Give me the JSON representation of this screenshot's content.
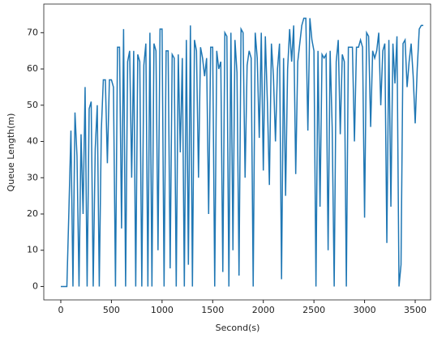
{
  "chart_data": {
    "type": "line",
    "xlabel": "Second(s)",
    "ylabel": "Queue Length(m)",
    "x": [
      0,
      20,
      40,
      60,
      80,
      100,
      120,
      140,
      160,
      180,
      200,
      220,
      240,
      260,
      280,
      300,
      320,
      340,
      360,
      380,
      400,
      420,
      440,
      460,
      480,
      500,
      520,
      540,
      560,
      580,
      600,
      620,
      640,
      660,
      680,
      700,
      720,
      740,
      760,
      780,
      800,
      820,
      840,
      860,
      880,
      900,
      920,
      940,
      960,
      980,
      1000,
      1020,
      1040,
      1060,
      1080,
      1100,
      1120,
      1140,
      1160,
      1180,
      1200,
      1220,
      1240,
      1260,
      1280,
      1300,
      1320,
      1340,
      1360,
      1380,
      1400,
      1420,
      1440,
      1460,
      1480,
      1500,
      1520,
      1540,
      1560,
      1580,
      1600,
      1620,
      1640,
      1660,
      1680,
      1700,
      1720,
      1740,
      1760,
      1780,
      1800,
      1820,
      1840,
      1860,
      1880,
      1900,
      1920,
      1940,
      1960,
      1980,
      2000,
      2020,
      2040,
      2060,
      2080,
      2100,
      2120,
      2140,
      2160,
      2180,
      2200,
      2220,
      2240,
      2260,
      2280,
      2300,
      2320,
      2340,
      2360,
      2380,
      2400,
      2420,
      2440,
      2460,
      2480,
      2500,
      2520,
      2540,
      2560,
      2580,
      2600,
      2620,
      2640,
      2660,
      2680,
      2700,
      2720,
      2740,
      2760,
      2780,
      2800,
      2820,
      2840,
      2860,
      2880,
      2900,
      2920,
      2940,
      2960,
      2980,
      3000,
      3020,
      3040,
      3060,
      3080,
      3100,
      3120,
      3140,
      3160,
      3180,
      3200,
      3220,
      3240,
      3260,
      3280,
      3300,
      3320,
      3340,
      3360,
      3380,
      3400,
      3420,
      3440,
      3460,
      3480,
      3500,
      3520,
      3540,
      3560,
      3580
    ],
    "series": [
      {
        "color": "#1f77b4",
        "values": [
          0,
          0,
          0,
          0,
          21,
          43,
          0,
          48,
          36,
          0,
          42,
          20,
          55,
          0,
          49,
          51,
          0,
          38,
          50,
          0,
          43,
          57,
          57,
          34,
          57,
          57,
          55,
          0,
          66,
          66,
          16,
          71,
          0,
          62,
          65,
          30,
          65,
          0,
          64,
          62,
          0,
          61,
          67,
          0,
          70,
          0,
          67,
          65,
          10,
          71,
          71,
          0,
          65,
          65,
          5,
          64,
          63,
          0,
          64,
          37,
          63,
          0,
          68,
          6,
          72,
          0,
          68,
          65,
          30,
          66,
          63,
          58,
          63,
          20,
          66,
          66,
          0,
          65,
          60,
          62,
          4,
          70,
          69,
          0,
          70,
          10,
          68,
          59,
          3,
          71,
          70,
          30,
          61,
          65,
          63,
          0,
          70,
          63,
          41,
          70,
          32,
          69,
          51,
          28,
          67,
          58,
          40,
          60,
          67,
          2,
          63,
          25,
          60,
          71,
          62,
          72,
          31,
          62,
          67,
          72,
          74,
          74,
          43,
          74,
          68,
          65,
          0,
          65,
          22,
          64,
          63,
          64,
          10,
          65,
          44,
          0,
          62,
          68,
          42,
          64,
          62,
          0,
          66,
          66,
          66,
          40,
          66,
          66,
          68,
          66,
          19,
          70,
          69,
          44,
          65,
          63,
          65,
          70,
          50,
          65,
          67,
          12,
          68,
          22,
          67,
          56,
          69,
          0,
          6,
          67,
          68,
          55,
          62,
          67,
          58,
          45,
          60,
          71,
          72,
          72
        ]
      }
    ],
    "xlim": [
      -168,
      3652
    ],
    "ylim": [
      -3.7,
      77.9
    ],
    "xticks": [
      0,
      500,
      1000,
      1500,
      2000,
      2500,
      3000,
      3500
    ],
    "yticks": [
      0,
      10,
      20,
      30,
      40,
      50,
      60,
      70
    ]
  }
}
